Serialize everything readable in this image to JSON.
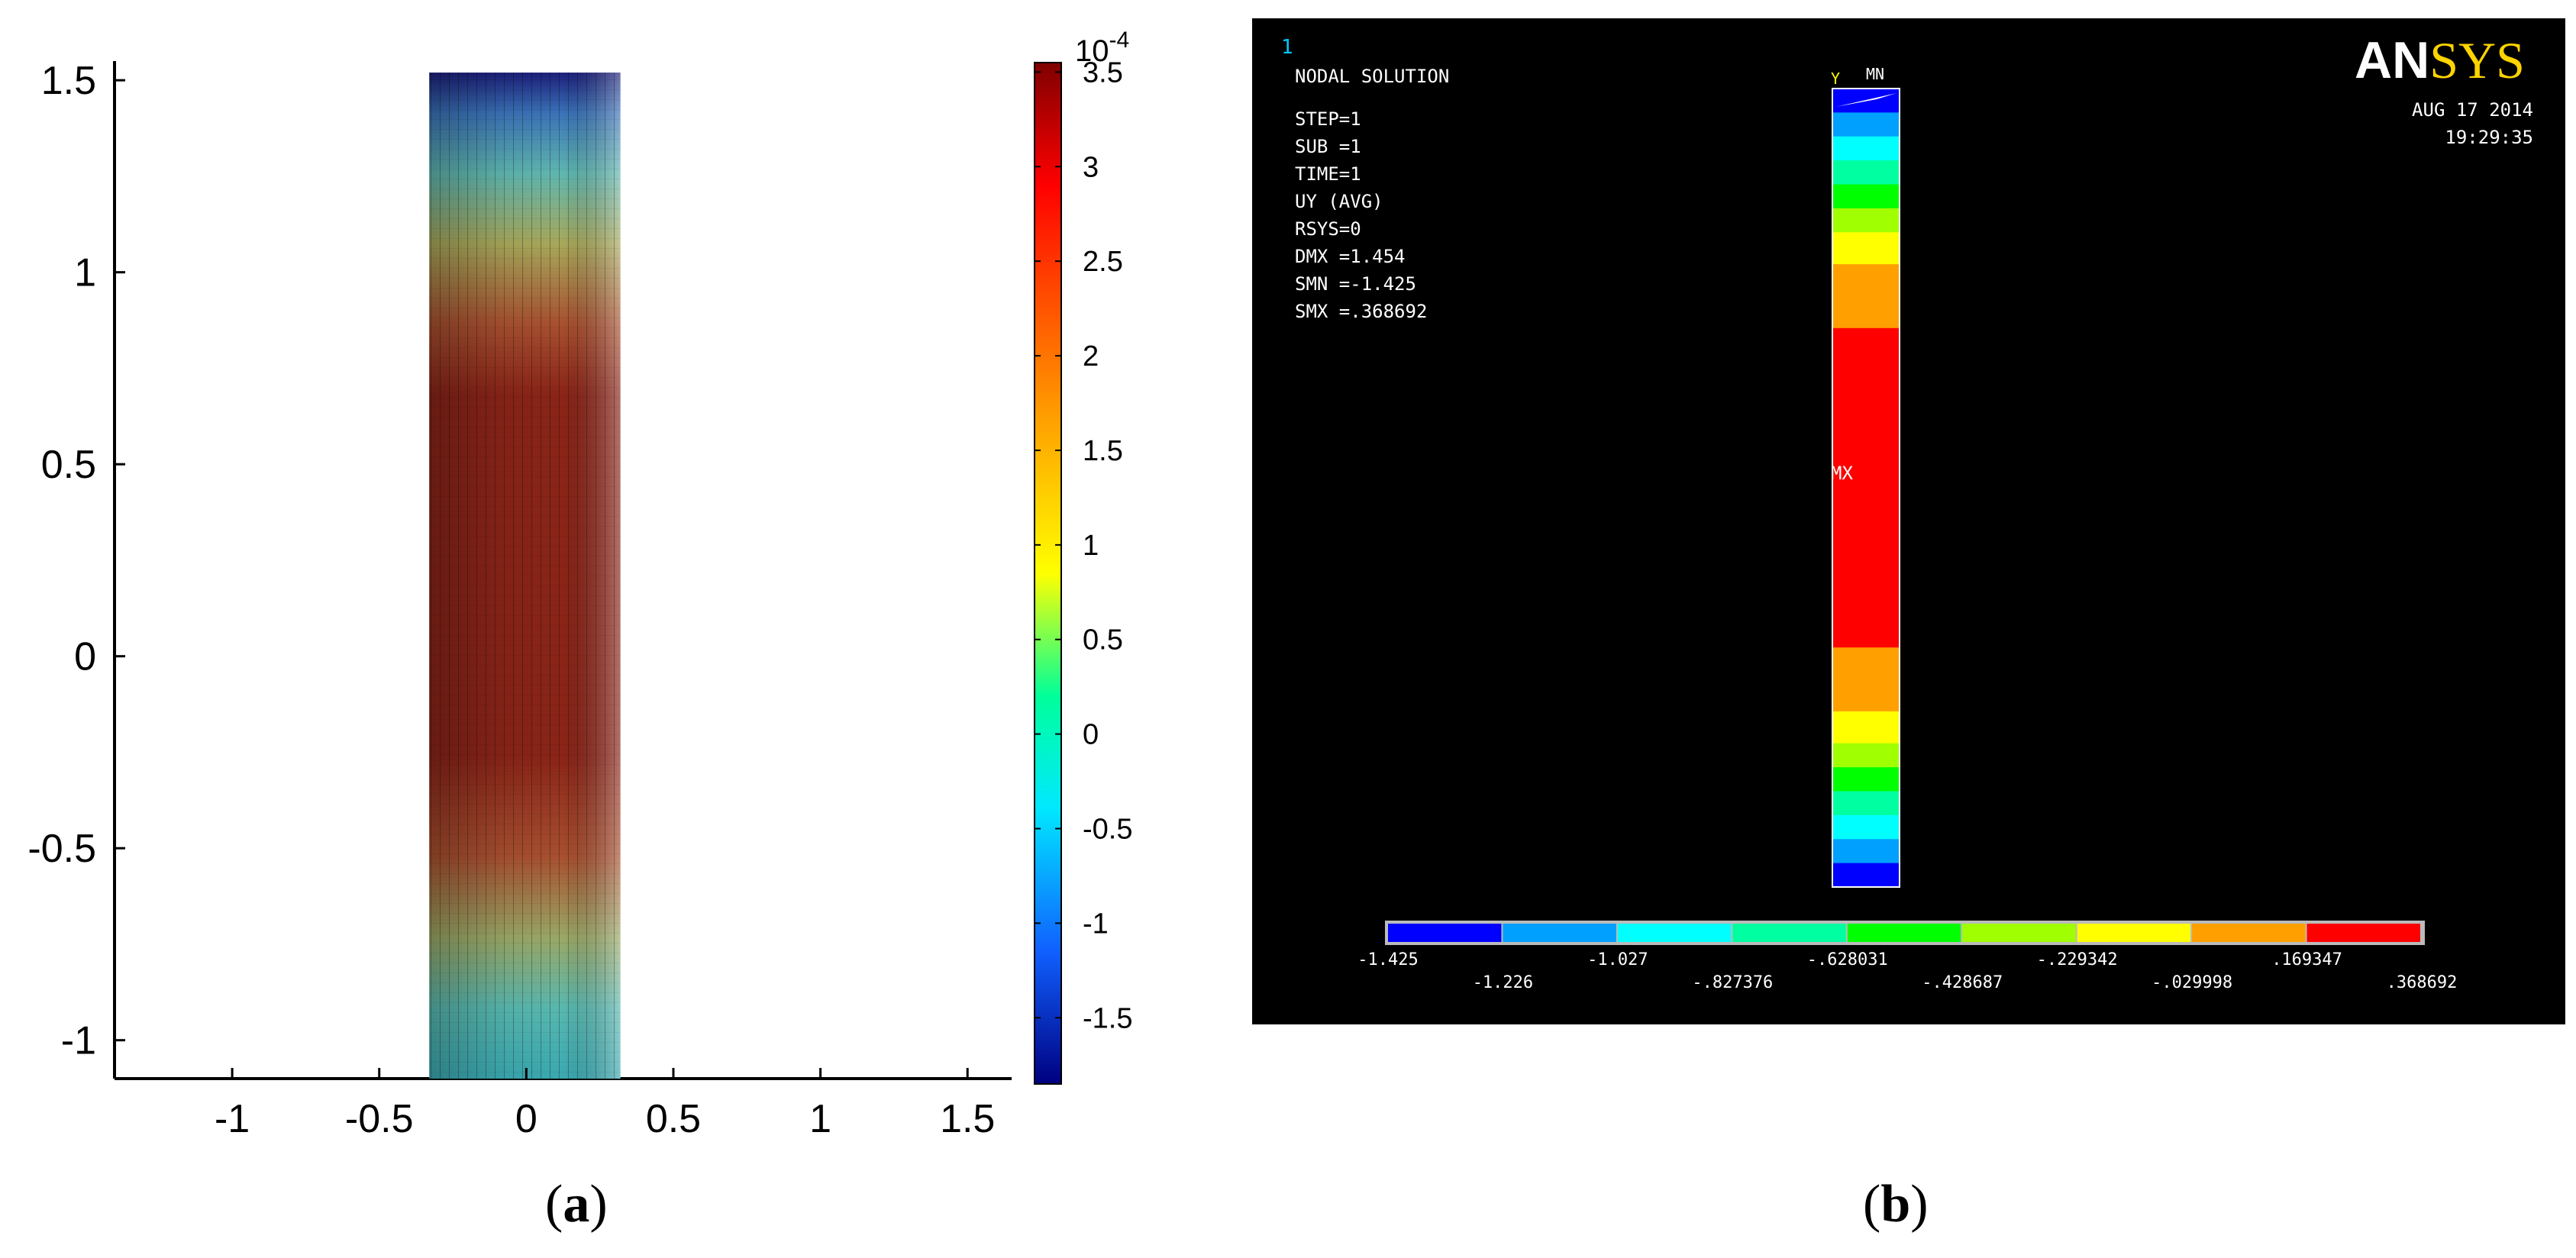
{
  "captions": {
    "a": "a",
    "b": "b"
  },
  "chart_data": [
    {
      "type": "heatmap",
      "title": "",
      "xlabel": "",
      "ylabel": "",
      "xlim": [
        -1.4,
        1.65
      ],
      "ylim": [
        -1.1,
        1.55
      ],
      "x_ticks": [
        "-1",
        "-0.5",
        "0",
        "0.5",
        "1",
        "1.5"
      ],
      "x_tick_values": [
        -1,
        -0.5,
        0,
        0.5,
        1,
        1.5
      ],
      "y_ticks": [
        "1.5",
        "1",
        "0.5",
        "0",
        "-0.5",
        "-1"
      ],
      "y_tick_values": [
        1.5,
        1,
        0.5,
        0,
        -0.5,
        -1
      ],
      "domain": {
        "x": [
          -0.33,
          0.32
        ],
        "y": [
          -1.1,
          1.52
        ]
      },
      "colorbar": {
        "exponent_label": "10",
        "exponent": "-4",
        "range": [
          -1.85,
          3.55
        ],
        "tick_labels": [
          "3.5",
          "3",
          "2.5",
          "2",
          "1.5",
          "1",
          "0.5",
          "0",
          "-0.5",
          "-1",
          "-1.5"
        ],
        "tick_values": [
          3.5,
          3,
          2.5,
          2,
          1.5,
          1,
          0.5,
          0,
          -0.5,
          -1,
          -1.5
        ]
      }
    },
    {
      "type": "heatmap",
      "title": "NODAL SOLUTION",
      "brand": {
        "part1": "AN",
        "part2": "SYS"
      },
      "window_number": "1",
      "date": "AUG 17 2014",
      "time": "19:29:35",
      "info_lines": [
        "STEP=1",
        "SUB =1",
        "TIME=1",
        "UY       (AVG)",
        "RSYS=0",
        "DMX =1.454",
        "SMN =-1.425",
        "SMX =.368692"
      ],
      "triad": {
        "y": "Y",
        "mn": "MN"
      },
      "max_label": "MX",
      "contour_bands": [
        {
          "from": 0.0,
          "to": 0.03,
          "level": 0
        },
        {
          "from": 0.03,
          "to": 0.06,
          "level": 1
        },
        {
          "from": 0.06,
          "to": 0.09,
          "level": 2
        },
        {
          "from": 0.09,
          "to": 0.12,
          "level": 3
        },
        {
          "from": 0.12,
          "to": 0.15,
          "level": 4
        },
        {
          "from": 0.15,
          "to": 0.18,
          "level": 5
        },
        {
          "from": 0.18,
          "to": 0.22,
          "level": 6
        },
        {
          "from": 0.22,
          "to": 0.3,
          "level": 7
        },
        {
          "from": 0.3,
          "to": 0.7,
          "level": 8
        },
        {
          "from": 0.7,
          "to": 0.78,
          "level": 7
        },
        {
          "from": 0.78,
          "to": 0.82,
          "level": 6
        },
        {
          "from": 0.82,
          "to": 0.85,
          "level": 5
        },
        {
          "from": 0.85,
          "to": 0.88,
          "level": 4
        },
        {
          "from": 0.88,
          "to": 0.91,
          "level": 3
        },
        {
          "from": 0.91,
          "to": 0.94,
          "level": 2
        },
        {
          "from": 0.94,
          "to": 0.97,
          "level": 1
        },
        {
          "from": 0.97,
          "to": 1.0,
          "level": 0
        }
      ],
      "legend": {
        "colors": [
          "#0000ff",
          "#00a0ff",
          "#00ffff",
          "#00ffa0",
          "#00ff00",
          "#a0ff00",
          "#ffff00",
          "#ffa000",
          "#ff0000"
        ],
        "labels": [
          "-1.425",
          "-1.226",
          "-1.027",
          "-.827376",
          "-.628031",
          "-.428687",
          "-.229342",
          "-.029998",
          ".169347",
          ".368692"
        ],
        "values": [
          -1.425,
          -1.226,
          -1.027,
          -0.827376,
          -0.628031,
          -0.428687,
          -0.229342,
          -0.029998,
          0.169347,
          0.368692
        ]
      }
    }
  ]
}
